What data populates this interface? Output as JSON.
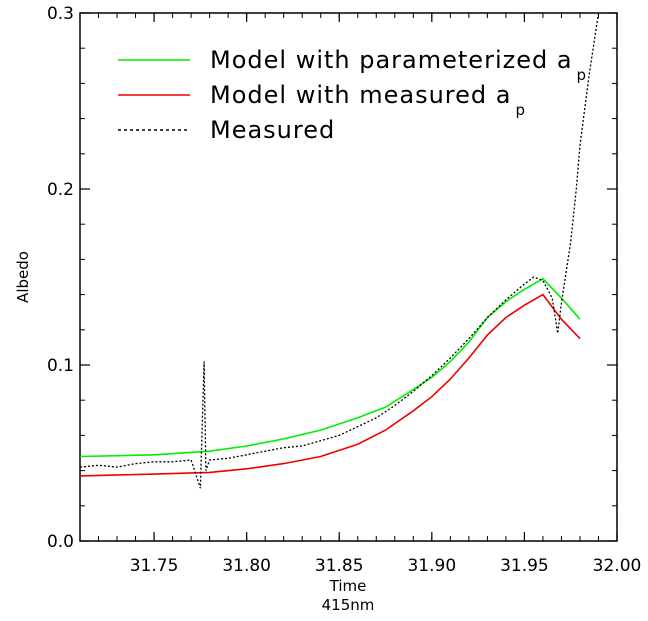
{
  "chart_data": {
    "type": "line",
    "title": "",
    "xlabel": "Time",
    "xlabel_sub": "415nm",
    "ylabel": "Albedo",
    "xlim": [
      31.71,
      32.0
    ],
    "ylim": [
      0.0,
      0.3
    ],
    "grid": false,
    "legend_position": "top-left",
    "x_ticks": [
      31.75,
      31.8,
      31.85,
      31.9,
      31.95,
      32.0
    ],
    "x_tick_labels": [
      "31.75",
      "31.80",
      "31.85",
      "31.90",
      "31.95",
      "32.00"
    ],
    "y_ticks": [
      0.0,
      0.1,
      0.2,
      0.3
    ],
    "y_tick_labels": [
      "0.0",
      "0.1",
      "0.2",
      "0.3"
    ],
    "series": [
      {
        "name": "Model with parameterized a",
        "name_sub": "p",
        "color": "#00ee00",
        "style": "solid",
        "x": [
          31.71,
          31.75,
          31.78,
          31.8,
          31.82,
          31.84,
          31.86,
          31.875,
          31.89,
          31.9,
          31.91,
          31.92,
          31.93,
          31.94,
          31.95,
          31.96,
          31.97,
          31.98
        ],
        "y": [
          0.048,
          0.049,
          0.051,
          0.054,
          0.058,
          0.063,
          0.07,
          0.076,
          0.086,
          0.093,
          0.102,
          0.113,
          0.127,
          0.136,
          0.143,
          0.149,
          0.138,
          0.126
        ]
      },
      {
        "name": "Model with measured a",
        "name_sub": "p",
        "color": "#ee0000",
        "style": "solid",
        "x": [
          31.71,
          31.75,
          31.78,
          31.8,
          31.82,
          31.84,
          31.86,
          31.875,
          31.89,
          31.9,
          31.91,
          31.92,
          31.93,
          31.94,
          31.95,
          31.96,
          31.97,
          31.98
        ],
        "y": [
          0.037,
          0.038,
          0.039,
          0.041,
          0.044,
          0.048,
          0.055,
          0.063,
          0.074,
          0.082,
          0.092,
          0.104,
          0.117,
          0.127,
          0.134,
          0.14,
          0.126,
          0.115
        ]
      },
      {
        "name": "Measured",
        "color": "#000000",
        "style": "dotted",
        "x": [
          31.71,
          31.72,
          31.73,
          31.74,
          31.75,
          31.76,
          31.77,
          31.775,
          31.777,
          31.778,
          31.78,
          31.79,
          31.8,
          31.81,
          31.82,
          31.83,
          31.84,
          31.85,
          31.86,
          31.87,
          31.88,
          31.89,
          31.9,
          31.91,
          31.92,
          31.93,
          31.94,
          31.95,
          31.955,
          31.96,
          31.965,
          31.968,
          31.97,
          31.975,
          31.978,
          31.98,
          31.985,
          31.99
        ],
        "y": [
          0.042,
          0.043,
          0.042,
          0.044,
          0.045,
          0.045,
          0.046,
          0.03,
          0.102,
          0.04,
          0.046,
          0.047,
          0.049,
          0.051,
          0.053,
          0.054,
          0.057,
          0.06,
          0.065,
          0.07,
          0.077,
          0.085,
          0.094,
          0.104,
          0.115,
          0.127,
          0.137,
          0.146,
          0.15,
          0.148,
          0.138,
          0.118,
          0.135,
          0.17,
          0.2,
          0.225,
          0.265,
          0.3
        ]
      }
    ]
  }
}
